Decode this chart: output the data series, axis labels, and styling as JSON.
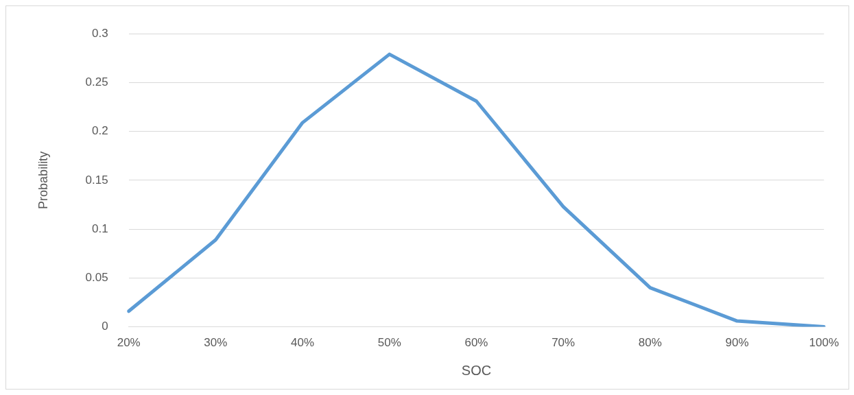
{
  "chart_data": {
    "type": "line",
    "xlabel": "SOC",
    "ylabel": "Probability",
    "categories": [
      "20%",
      "30%",
      "40%",
      "50%",
      "60%",
      "70%",
      "80%",
      "90%",
      "100%"
    ],
    "series": [
      {
        "color": "#5b9bd5",
        "values": [
          0.016,
          0.089,
          0.209,
          0.279,
          0.231,
          0.123,
          0.04,
          0.006,
          0
        ]
      }
    ],
    "ylim": [
      0,
      0.3
    ],
    "yticks": [
      0,
      0.05,
      0.1,
      0.15,
      0.2,
      0.25,
      0.3
    ],
    "grid": "y",
    "legend": false,
    "marker": "none",
    "line_style": "solid"
  }
}
